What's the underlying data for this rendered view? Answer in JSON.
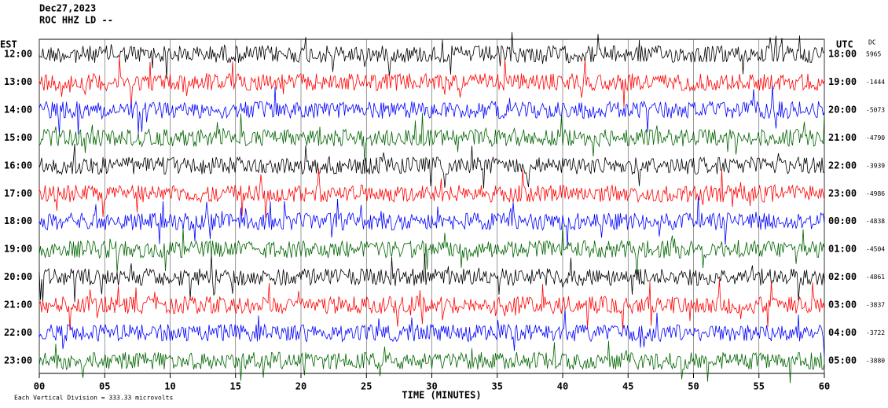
{
  "header": {
    "date": "Dec27,2023",
    "station": "ROC HHZ LD --"
  },
  "left_title": "EST",
  "right_title": "UTC",
  "dc_title": "DC",
  "rows": [
    {
      "est": "12:00",
      "utc": "18:00",
      "dc": 5965,
      "color": "#000000"
    },
    {
      "est": "13:00",
      "utc": "19:00",
      "dc": -1444,
      "color": "#ff0000"
    },
    {
      "est": "14:00",
      "utc": "20:00",
      "dc": -5073,
      "color": "#0000ff"
    },
    {
      "est": "15:00",
      "utc": "21:00",
      "dc": -4790,
      "color": "#006400"
    },
    {
      "est": "16:00",
      "utc": "22:00",
      "dc": -3939,
      "color": "#000000"
    },
    {
      "est": "17:00",
      "utc": "23:00",
      "dc": -4986,
      "color": "#ff0000"
    },
    {
      "est": "18:00",
      "utc": "00:00",
      "dc": -4838,
      "color": "#0000ff"
    },
    {
      "est": "19:00",
      "utc": "01:00",
      "dc": -4504,
      "color": "#006400"
    },
    {
      "est": "20:00",
      "utc": "02:00",
      "dc": -4861,
      "color": "#000000"
    },
    {
      "est": "21:00",
      "utc": "03:00",
      "dc": -3837,
      "color": "#ff0000"
    },
    {
      "est": "22:00",
      "utc": "04:00",
      "dc": -3722,
      "color": "#0000ff"
    },
    {
      "est": "23:00",
      "utc": "05:00",
      "dc": -3880,
      "color": "#006400"
    }
  ],
  "x_axis": {
    "label": "TIME (MINUTES)",
    "ticks": [
      "00",
      "05",
      "10",
      "15",
      "20",
      "25",
      "30",
      "35",
      "40",
      "45",
      "50",
      "55",
      "60"
    ]
  },
  "footer": "Each Vertical Division =  333.33 microvolts"
}
